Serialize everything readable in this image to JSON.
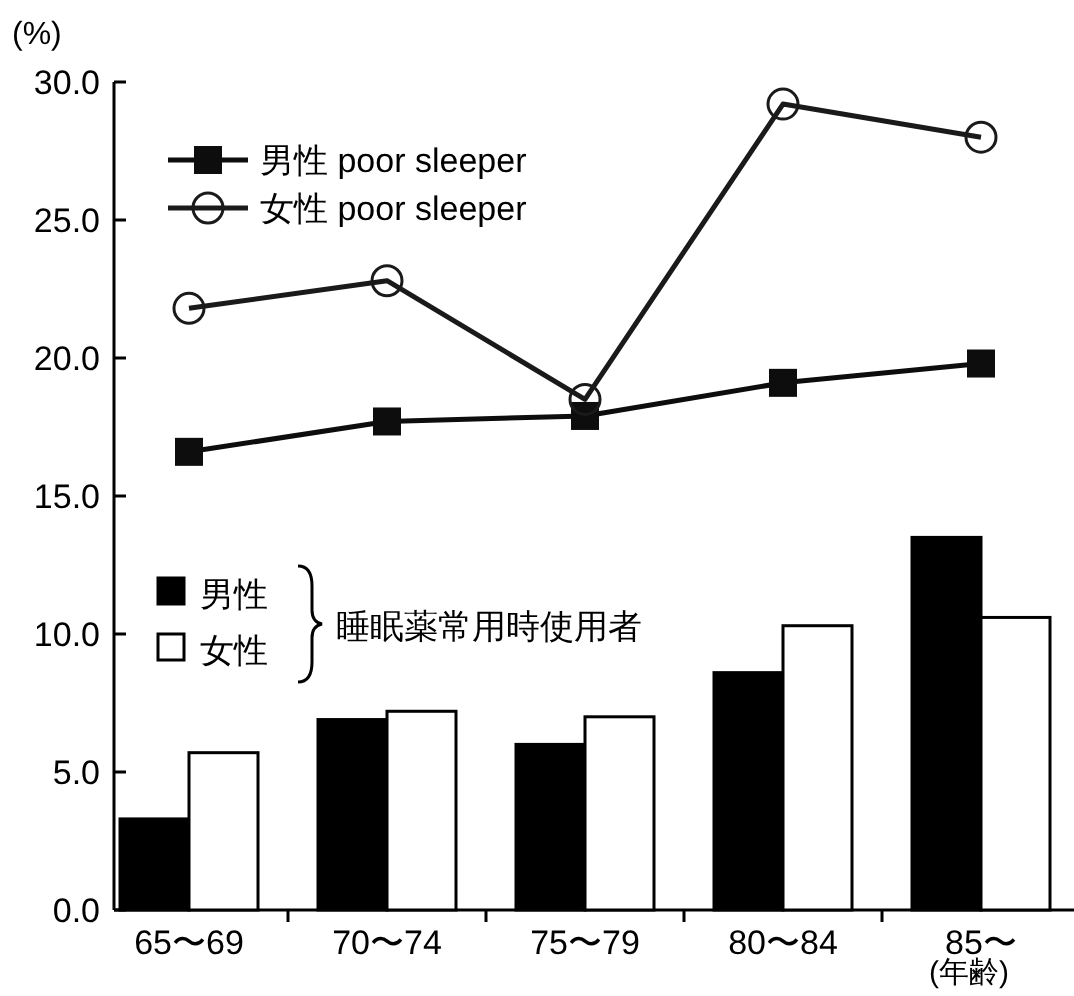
{
  "chart_data": {
    "type": "bar",
    "ylabel": "(%)",
    "xlabel": "(年齢)",
    "categories": [
      "65〜69",
      "70〜74",
      "75〜79",
      "80〜84",
      "85〜"
    ],
    "ylim": [
      0,
      30
    ],
    "yticks": [
      {
        "value": 0,
        "label": "0.0"
      },
      {
        "value": 5,
        "label": "5.0"
      },
      {
        "value": 10,
        "label": "10.0"
      },
      {
        "value": 15,
        "label": "15.0"
      },
      {
        "value": 20,
        "label": "20.0"
      },
      {
        "value": 25,
        "label": "25.0"
      },
      {
        "value": 30,
        "label": "30.0"
      }
    ],
    "legend": "top left",
    "annotations": [
      "睡眠薬常用時使用者"
    ],
    "series": [
      {
        "name": "男性 poor sleeper",
        "type": "line",
        "color": "#0d0d0d",
        "marker": "square",
        "values": [
          16.6,
          17.7,
          17.9,
          19.1,
          19.8
        ]
      },
      {
        "name": "女性 poor sleeper",
        "type": "line",
        "color": "#1a1a1a",
        "marker": "circle",
        "values": [
          21.8,
          22.8,
          18.5,
          29.2,
          28.0
        ]
      },
      {
        "name": "男性",
        "color": "#000000",
        "values": [
          3.3,
          6.9,
          6.0,
          8.6,
          13.5
        ]
      },
      {
        "name": "女性",
        "color": "#ffffff",
        "values": [
          5.7,
          7.2,
          7.0,
          10.3,
          10.6
        ]
      }
    ]
  }
}
